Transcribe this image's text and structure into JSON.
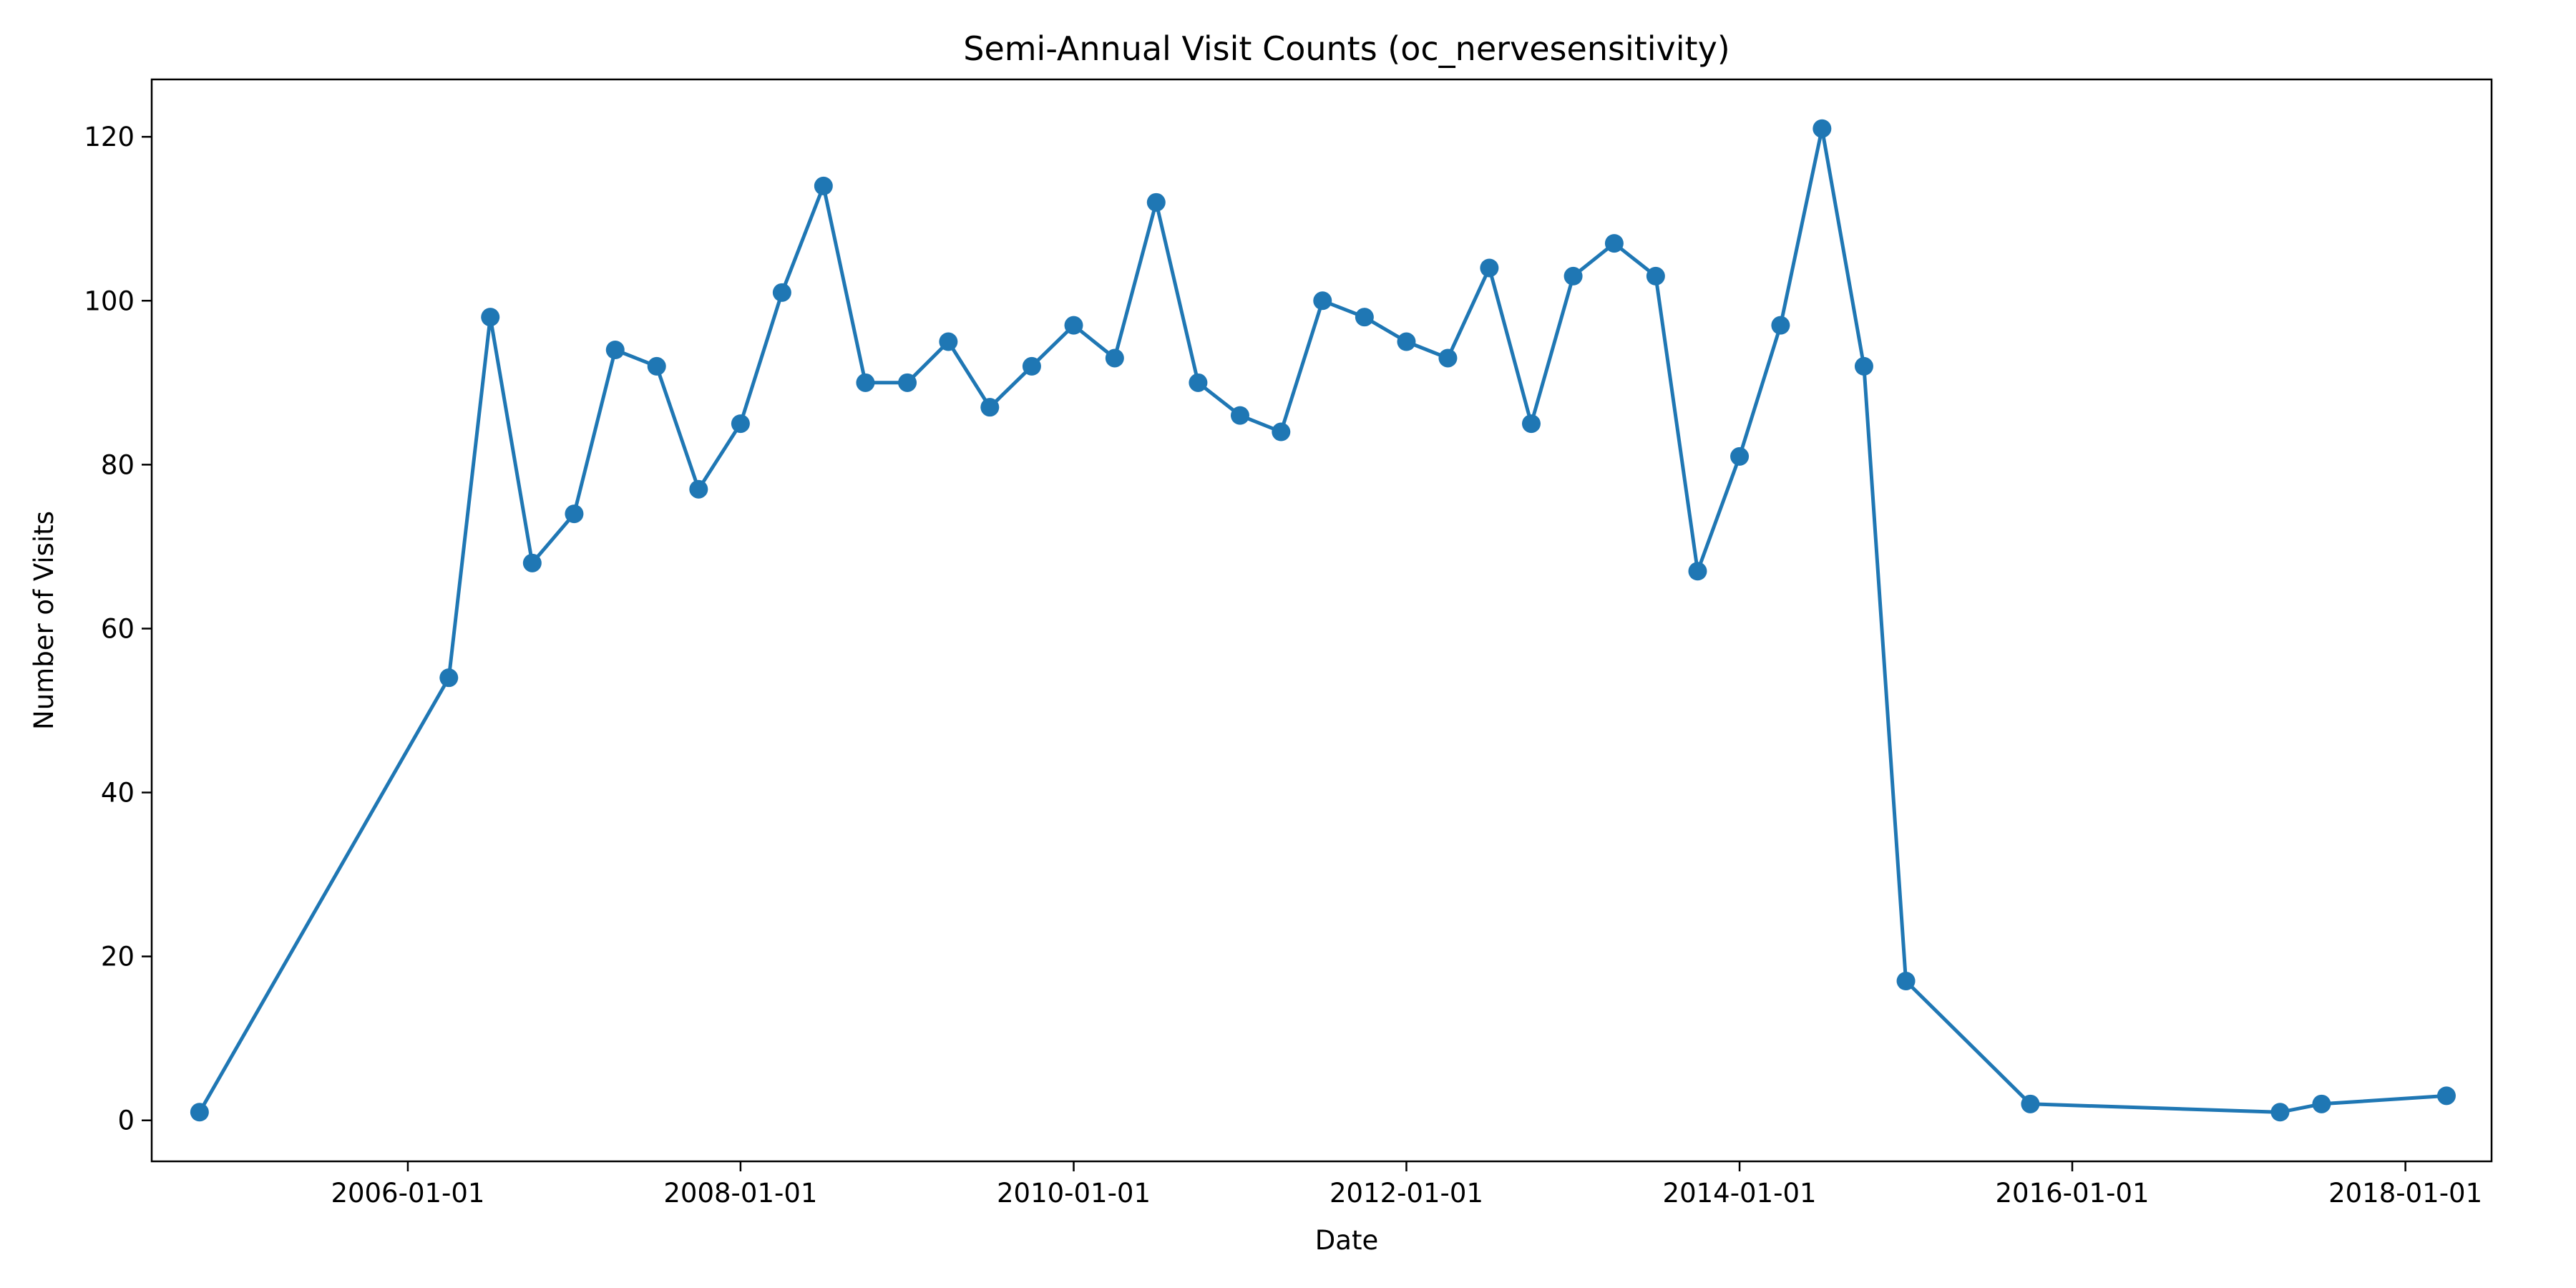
{
  "chart_data": {
    "type": "line",
    "title": "Semi-Annual Visit Counts (oc_nervesensitivity)",
    "xlabel": "Date",
    "ylabel": "Number of Visits",
    "x_axis_type": "date",
    "xlim": [
      "2004-06-18",
      "2018-07-09"
    ],
    "ylim": [
      -5,
      127
    ],
    "x_ticks": [
      "2006-01-01",
      "2008-01-01",
      "2010-01-01",
      "2012-01-01",
      "2014-01-01",
      "2016-01-01",
      "2018-01-01"
    ],
    "y_ticks": [
      0,
      20,
      40,
      60,
      80,
      100,
      120
    ],
    "grid": false,
    "legend": false,
    "color": "#1f77b4",
    "marker": "circle",
    "series": [
      {
        "x": [
          "2004-10-01",
          "2006-04-01",
          "2006-07-01",
          "2006-10-01",
          "2007-01-01",
          "2007-04-01",
          "2007-07-01",
          "2007-10-01",
          "2008-01-01",
          "2008-04-01",
          "2008-07-01",
          "2008-10-01",
          "2009-01-01",
          "2009-04-01",
          "2009-07-01",
          "2009-10-01",
          "2010-01-01",
          "2010-04-01",
          "2010-07-01",
          "2010-10-01",
          "2011-01-01",
          "2011-04-01",
          "2011-07-01",
          "2011-10-01",
          "2012-01-01",
          "2012-04-01",
          "2012-07-01",
          "2012-10-01",
          "2013-01-01",
          "2013-04-01",
          "2013-07-01",
          "2013-10-01",
          "2014-01-01",
          "2014-04-01",
          "2014-07-01",
          "2014-10-01",
          "2015-01-01",
          "2015-10-01",
          "2017-04-01",
          "2017-07-01",
          "2018-04-01"
        ],
        "values": [
          1,
          54,
          98,
          68,
          74,
          94,
          92,
          77,
          85,
          101,
          114,
          90,
          90,
          95,
          87,
          92,
          97,
          93,
          112,
          90,
          86,
          84,
          100,
          98,
          95,
          93,
          104,
          85,
          103,
          107,
          103,
          67,
          81,
          97,
          121,
          92,
          17,
          2,
          1,
          2,
          3
        ]
      }
    ]
  }
}
